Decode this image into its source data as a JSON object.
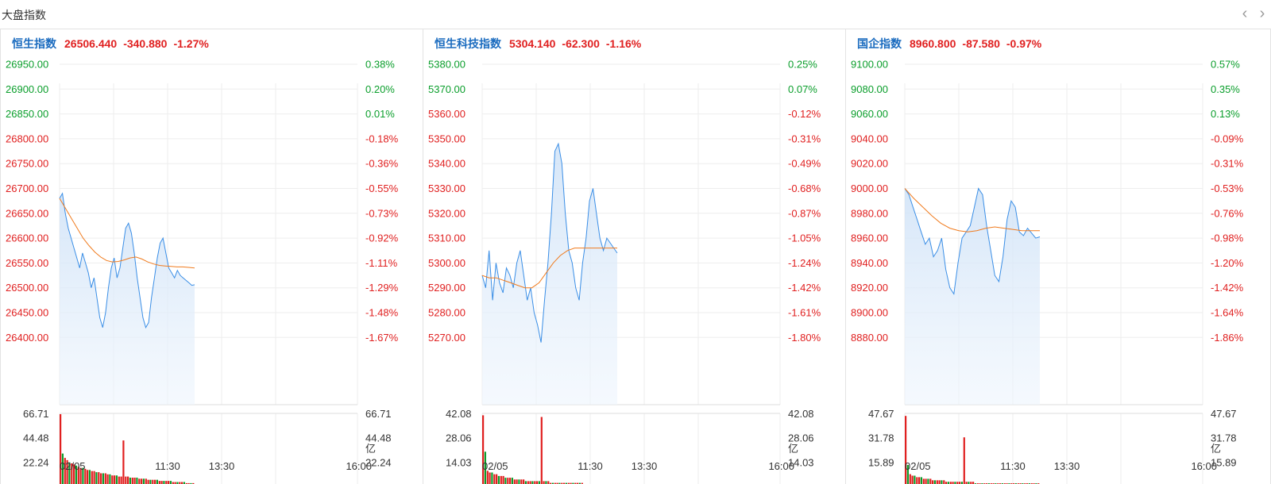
{
  "section": {
    "title": "大盘指数"
  },
  "nav": {
    "prev_icon": "chevron-left-icon",
    "next_icon": "chevron-right-icon",
    "prev": "‹",
    "next": "›"
  },
  "colors": {
    "up": "#0a9e2b",
    "down": "#e02020",
    "name": "#1a6bbf",
    "price_line": "#3a8ee6",
    "avg_line": "#f07b1e"
  },
  "panels": [
    {
      "name": "恒生指数",
      "value": "26506.440",
      "change": "-340.880",
      "pct": "-1.27%"
    },
    {
      "name": "恒生科技指数",
      "value": "5304.140",
      "change": "-62.300",
      "pct": "-1.16%"
    },
    {
      "name": "国企指数",
      "value": "8960.800",
      "change": "-87.580",
      "pct": "-0.97%"
    }
  ],
  "chart_data": [
    {
      "type": "line",
      "title": "恒生指数",
      "x_ticks": [
        "02/05",
        "11:30",
        "13:30",
        "16:00"
      ],
      "y_ticks": [
        26950,
        26900,
        26850,
        26800,
        26750,
        26700,
        26650,
        26600,
        26550,
        26500,
        26450,
        26400
      ],
      "y_tick_labels": [
        "26950.00",
        "26900.00",
        "26850.00",
        "26800.00",
        "26750.00",
        "26700.00",
        "26650.00",
        "26600.00",
        "26550.00",
        "26500.00",
        "26450.00",
        "26400.00"
      ],
      "pct_tick_labels": [
        "0.38%",
        "0.20%",
        "0.01%",
        "-0.18%",
        "-0.36%",
        "-0.55%",
        "-0.73%",
        "-0.92%",
        "-1.11%",
        "-1.29%",
        "-1.48%",
        "-1.67%"
      ],
      "pct_tick_colors": [
        "up",
        "up",
        "up",
        "down",
        "down",
        "down",
        "down",
        "down",
        "down",
        "down",
        "down",
        "down"
      ],
      "ylim": [
        26350,
        26975
      ],
      "price": [
        26680,
        26690,
        26650,
        26620,
        26600,
        26580,
        26560,
        26540,
        26570,
        26550,
        26530,
        26500,
        26520,
        26480,
        26440,
        26420,
        26450,
        26500,
        26540,
        26560,
        26520,
        26540,
        26580,
        26620,
        26630,
        26610,
        26570,
        26520,
        26480,
        26440,
        26420,
        26430,
        26480,
        26520,
        26560,
        26590,
        26600,
        26570,
        26540,
        26530,
        26520,
        26535,
        26525,
        26520,
        26515,
        26510,
        26505,
        26506
      ],
      "avg": [
        26680,
        26660,
        26640,
        26620,
        26600,
        26585,
        26572,
        26562,
        26555,
        26552,
        26553,
        26556,
        26560,
        26562,
        26558,
        26552,
        26548,
        26545,
        26544,
        26543,
        26542,
        26542,
        26541,
        26540
      ],
      "volume_ticks": [
        "66.71",
        "44.48",
        "22.24"
      ],
      "volume_unit": "亿",
      "volume_max": 66.71,
      "volume": [
        66,
        30,
        26,
        24,
        22,
        21,
        20,
        19,
        18,
        17,
        17,
        16,
        15,
        15,
        14,
        14,
        13,
        13,
        12,
        12,
        12,
        11,
        11,
        10,
        10,
        10,
        9,
        9,
        42,
        9,
        9,
        8,
        8,
        8,
        8,
        7,
        7,
        7,
        7,
        6,
        6,
        6,
        6,
        6,
        5,
        5,
        5,
        5,
        5,
        5,
        4,
        4,
        4,
        4,
        4,
        4,
        3,
        3,
        3,
        3
      ]
    },
    {
      "type": "line",
      "title": "恒生科技指数",
      "x_ticks": [
        "02/05",
        "11:30",
        "13:30",
        "16:00"
      ],
      "y_ticks": [
        5380,
        5370,
        5360,
        5350,
        5340,
        5330,
        5320,
        5310,
        5300,
        5290,
        5280,
        5270
      ],
      "y_tick_labels": [
        "5380.00",
        "5370.00",
        "5360.00",
        "5350.00",
        "5340.00",
        "5330.00",
        "5320.00",
        "5310.00",
        "5300.00",
        "5290.00",
        "5280.00",
        "5270.00"
      ],
      "pct_tick_labels": [
        "0.25%",
        "0.07%",
        "-0.12%",
        "-0.31%",
        "-0.49%",
        "-0.68%",
        "-0.87%",
        "-1.05%",
        "-1.24%",
        "-1.42%",
        "-1.61%",
        "-1.80%"
      ],
      "pct_tick_colors": [
        "up",
        "up",
        "down",
        "down",
        "down",
        "down",
        "down",
        "down",
        "down",
        "down",
        "down",
        "down"
      ],
      "ylim": [
        5260,
        5385
      ],
      "price": [
        5295,
        5290,
        5305,
        5285,
        5300,
        5292,
        5288,
        5298,
        5295,
        5290,
        5300,
        5305,
        5295,
        5285,
        5290,
        5280,
        5275,
        5268,
        5285,
        5300,
        5320,
        5345,
        5348,
        5340,
        5320,
        5305,
        5300,
        5290,
        5285,
        5300,
        5310,
        5325,
        5330,
        5320,
        5310,
        5305,
        5310,
        5308,
        5306,
        5304
      ],
      "avg": [
        5295,
        5294,
        5294,
        5293,
        5292,
        5291,
        5290,
        5290,
        5292,
        5296,
        5300,
        5303,
        5305,
        5306,
        5306,
        5306,
        5306,
        5306,
        5306,
        5306
      ],
      "volume_ticks": [
        "42.08",
        "28.06",
        "14.03"
      ],
      "volume_unit": "亿",
      "volume_max": 42.08,
      "volume": [
        41,
        20,
        9,
        8,
        8,
        7,
        7,
        6,
        6,
        6,
        5,
        5,
        5,
        5,
        4,
        4,
        4,
        4,
        4,
        3,
        3,
        3,
        3,
        3,
        3,
        3,
        40,
        3,
        3,
        3,
        2,
        2,
        2,
        2,
        2,
        2,
        2,
        2,
        2,
        2,
        2,
        2,
        2,
        2,
        2,
        1,
        1,
        1,
        1,
        1,
        1,
        1,
        1,
        1,
        1,
        1,
        1,
        1,
        1,
        1
      ]
    },
    {
      "type": "line",
      "title": "国企指数",
      "x_ticks": [
        "02/05",
        "11:30",
        "13:30",
        "16:00"
      ],
      "y_ticks": [
        9100,
        9080,
        9060,
        9040,
        9020,
        9000,
        8980,
        8960,
        8940,
        8920,
        8900,
        8880
      ],
      "y_tick_labels": [
        "9100.00",
        "9080.00",
        "9060.00",
        "9040.00",
        "9020.00",
        "9000.00",
        "8980.00",
        "8960.00",
        "8940.00",
        "8920.00",
        "8900.00",
        "8880.00"
      ],
      "pct_tick_labels": [
        "0.57%",
        "0.35%",
        "0.13%",
        "-0.09%",
        "-0.31%",
        "-0.53%",
        "-0.76%",
        "-0.98%",
        "-1.20%",
        "-1.42%",
        "-1.64%",
        "-1.86%"
      ],
      "pct_tick_colors": [
        "up",
        "up",
        "up",
        "down",
        "down",
        "down",
        "down",
        "down",
        "down",
        "down",
        "down",
        "down"
      ],
      "ylim": [
        8860,
        9105
      ],
      "price": [
        9000,
        8995,
        8985,
        8975,
        8965,
        8955,
        8960,
        8945,
        8950,
        8960,
        8935,
        8920,
        8915,
        8940,
        8960,
        8965,
        8970,
        8985,
        9000,
        8995,
        8970,
        8950,
        8930,
        8925,
        8945,
        8975,
        8990,
        8985,
        8965,
        8962,
        8968,
        8964,
        8960,
        8961
      ],
      "avg": [
        9000,
        8992,
        8985,
        8978,
        8972,
        8968,
        8966,
        8965,
        8966,
        8968,
        8969,
        8968,
        8967,
        8966,
        8966,
        8966
      ],
      "volume_ticks": [
        "47.67",
        "31.78",
        "15.89"
      ],
      "volume_unit": "亿",
      "volume_max": 47.67,
      "volume": [
        46,
        14,
        8,
        7,
        7,
        6,
        6,
        6,
        5,
        5,
        5,
        5,
        4,
        4,
        4,
        4,
        4,
        4,
        3,
        3,
        3,
        3,
        3,
        3,
        3,
        3,
        32,
        3,
        3,
        3,
        3,
        2,
        2,
        2,
        2,
        2,
        2,
        2,
        2,
        2,
        2,
        2,
        2,
        2,
        2,
        2,
        2,
        2,
        2,
        2,
        2,
        2,
        2,
        2,
        2,
        2,
        2,
        2,
        2,
        2
      ]
    }
  ]
}
